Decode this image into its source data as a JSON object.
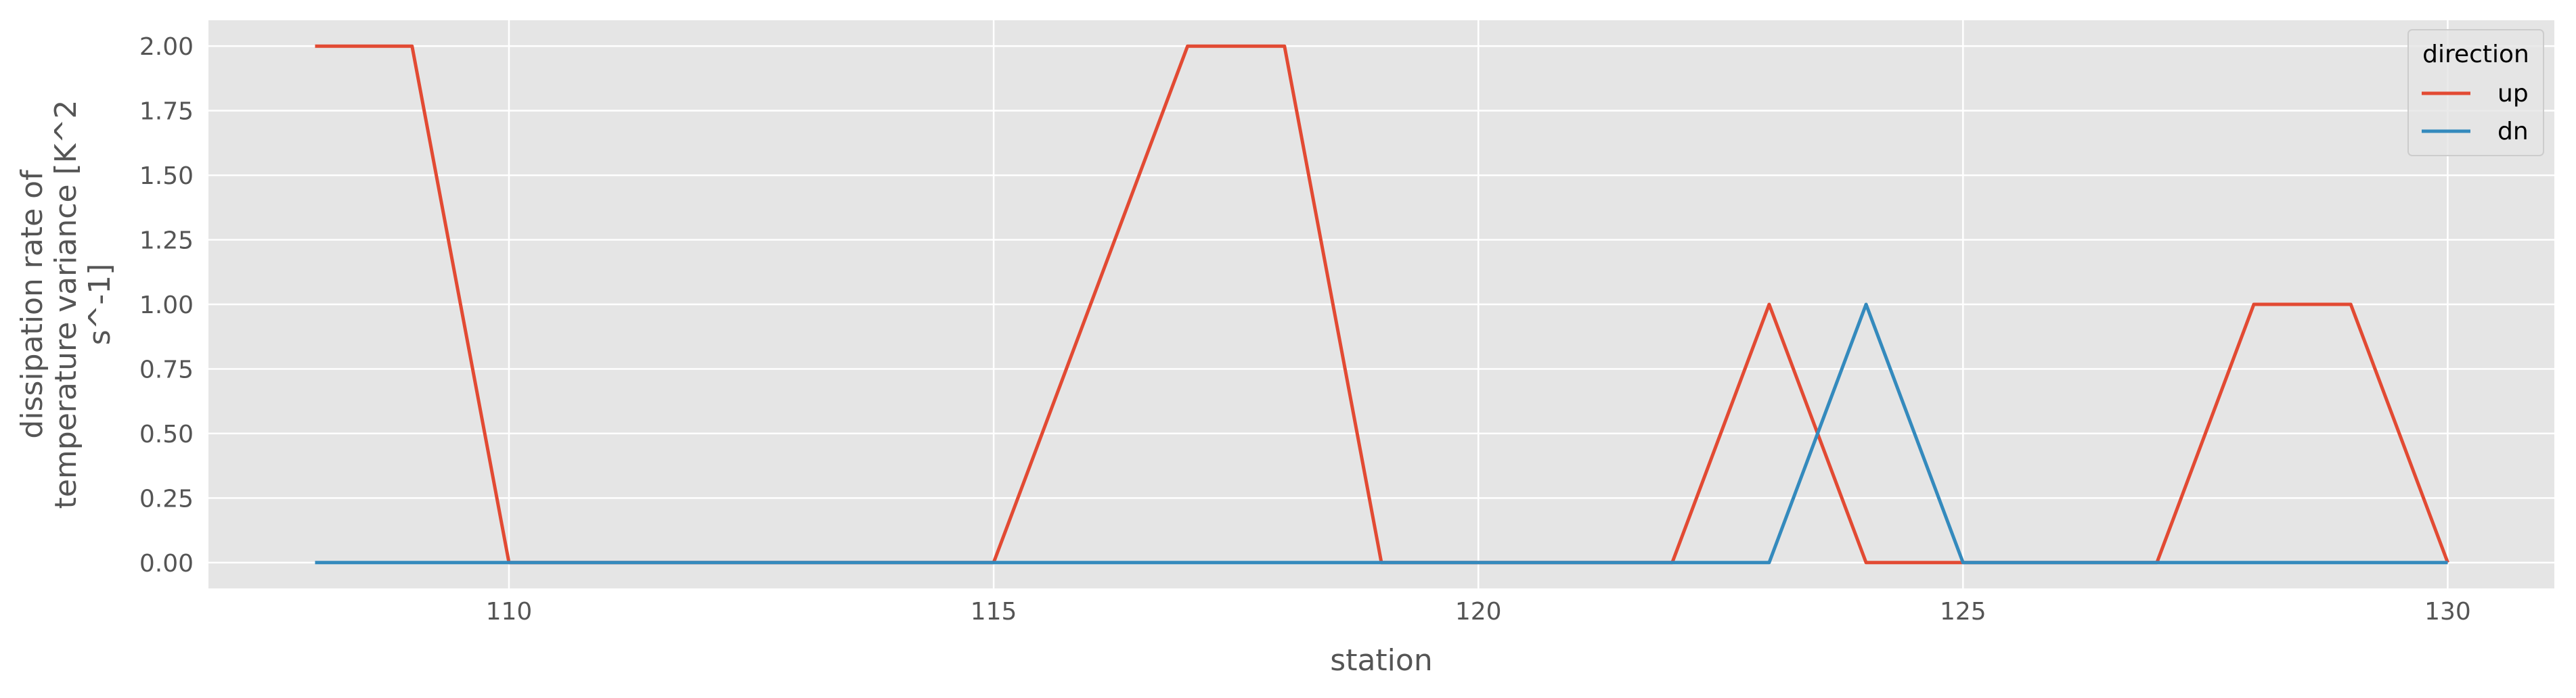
{
  "chart_data": {
    "type": "line",
    "title": "",
    "xlabel": "station",
    "ylabel": [
      "dissipation rate of",
      "temperature variance [K^2",
      "s^-1]"
    ],
    "xlim": [
      106.9,
      131.1
    ],
    "ylim": [
      -0.1,
      2.1
    ],
    "xticks": [
      110,
      115,
      120,
      125,
      130
    ],
    "yticks": [
      0.0,
      0.25,
      0.5,
      0.75,
      1.0,
      1.25,
      1.5,
      1.75,
      2.0
    ],
    "grid": true,
    "legend": {
      "title": "direction",
      "placement": "top-right"
    },
    "x": [
      108,
      109,
      110,
      111,
      112,
      113,
      114,
      115,
      116,
      117,
      118,
      119,
      120,
      121,
      122,
      123,
      124,
      125,
      126,
      127,
      128,
      129,
      130
    ],
    "series": [
      {
        "name": "up",
        "color": "#E24A33",
        "values": [
          2,
          2,
          0,
          0,
          0,
          0,
          0,
          0,
          1,
          2,
          2,
          0,
          0,
          0,
          0,
          1,
          0,
          0,
          0,
          0,
          1,
          1,
          0
        ]
      },
      {
        "name": "dn",
        "color": "#348ABD",
        "values": [
          0,
          0,
          0,
          0,
          0,
          0,
          0,
          0,
          0,
          0,
          0,
          0,
          0,
          0,
          0,
          0,
          1,
          0,
          0,
          0,
          0,
          0,
          0
        ]
      }
    ]
  }
}
